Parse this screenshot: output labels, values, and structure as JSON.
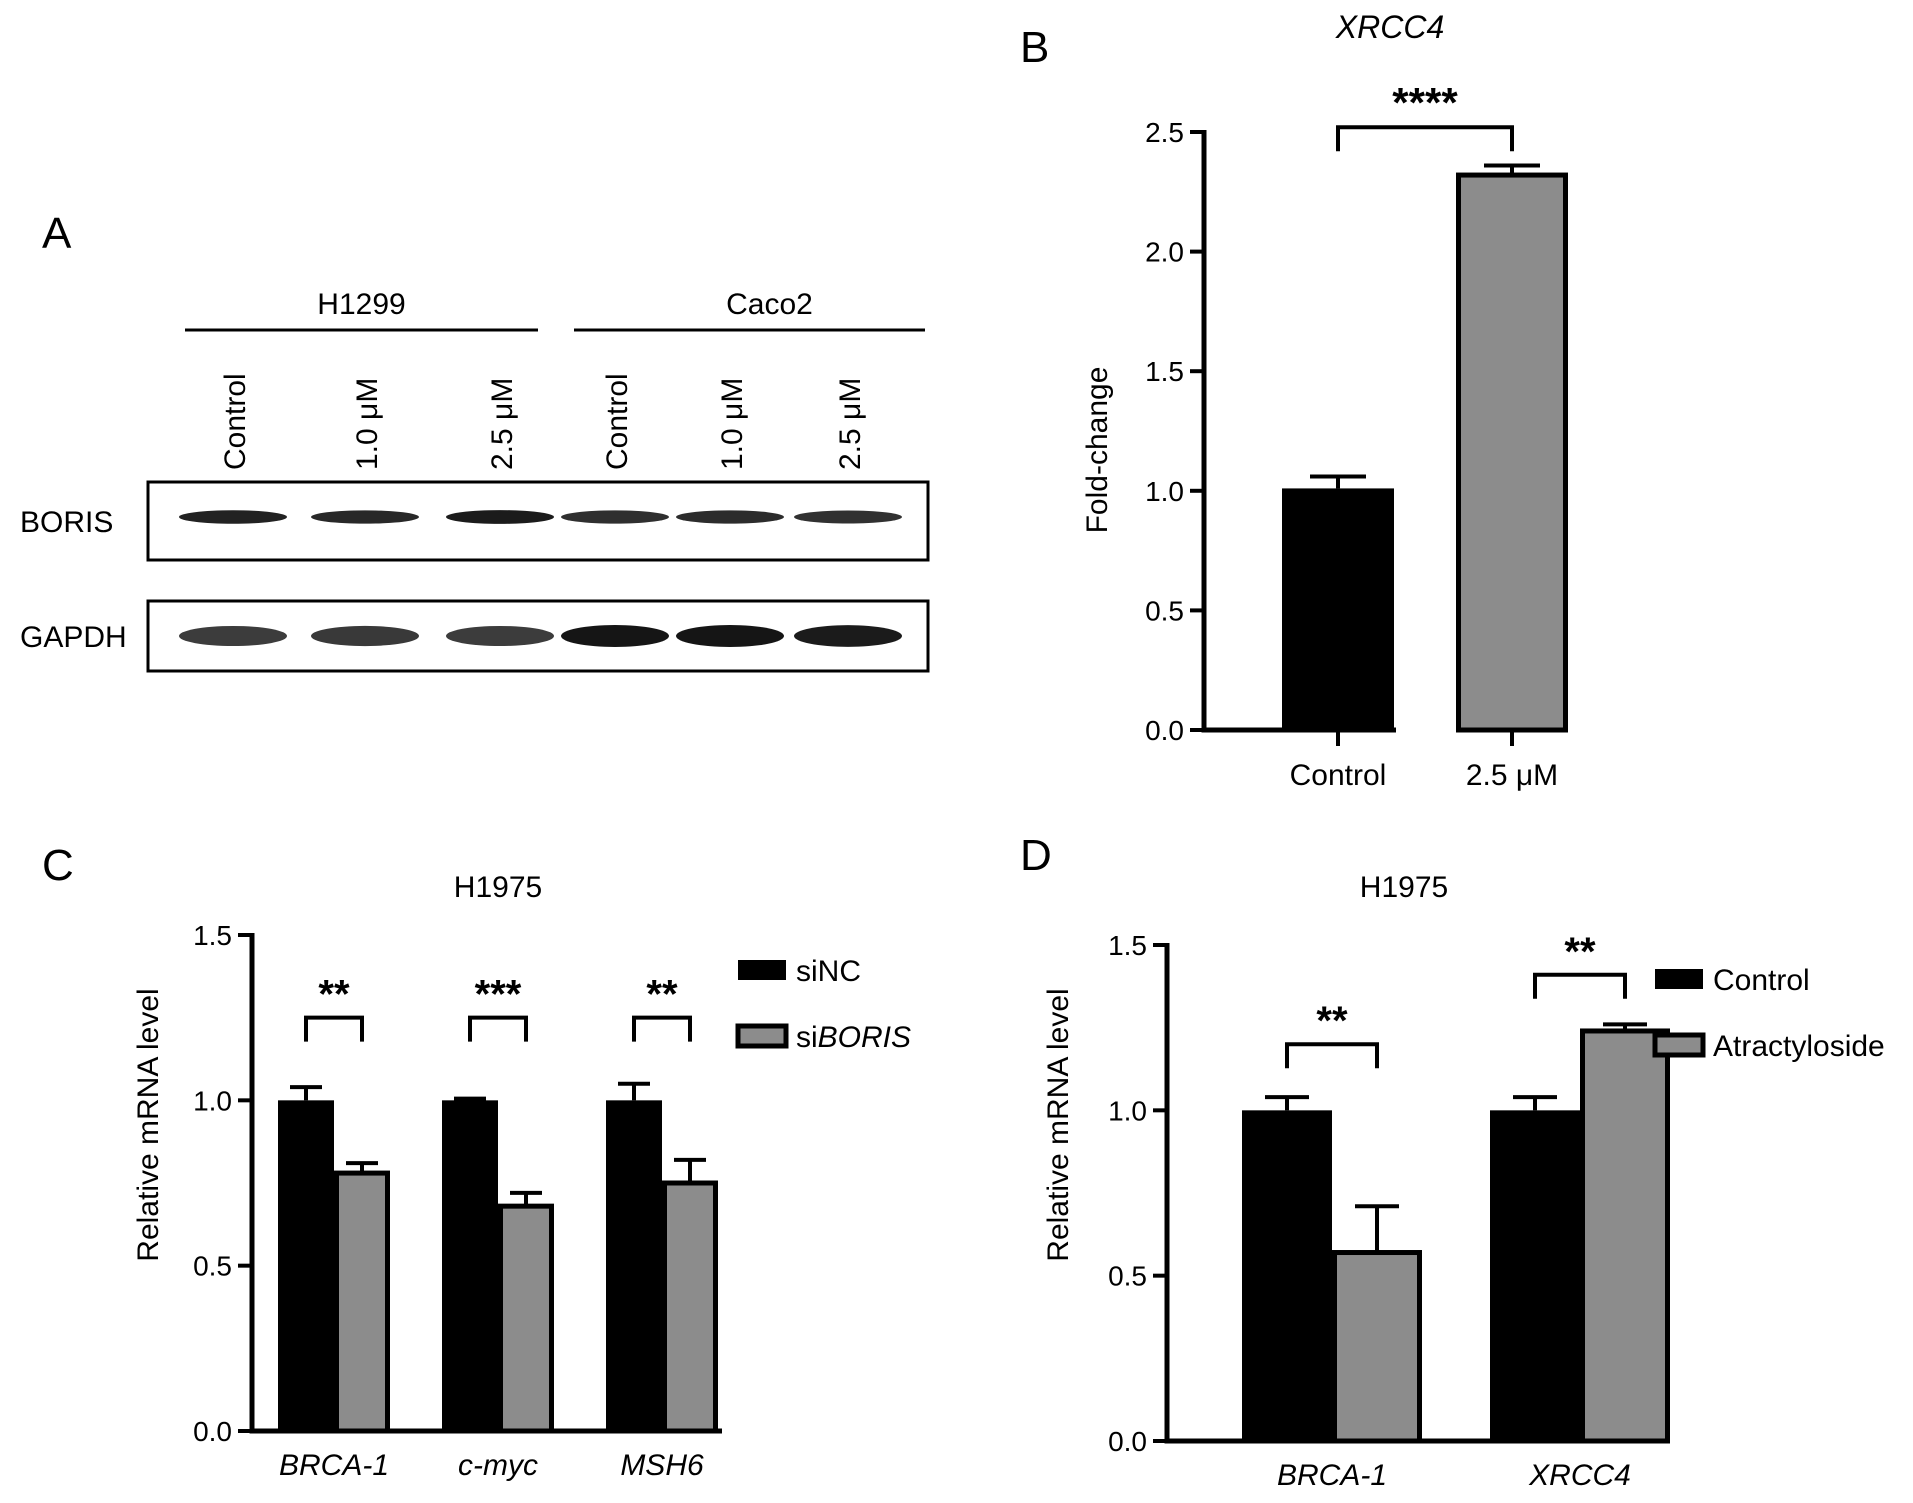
{
  "panels": {
    "A": {
      "letter": "A",
      "groups": [
        {
          "name": "H1299",
          "lanes": [
            "Control",
            "1.0 μM",
            "2.5 μM"
          ]
        },
        {
          "name": "Caco2",
          "lanes": [
            "Control",
            "1.0 μM",
            "2.5 μM"
          ]
        }
      ],
      "blots": [
        {
          "label": "BORIS",
          "band_intensity": [
            0.9,
            0.85,
            0.95,
            0.8,
            0.82,
            0.78
          ]
        },
        {
          "label": "GAPDH",
          "band_intensity": [
            0.7,
            0.72,
            0.7,
            1.0,
            1.0,
            0.95
          ]
        }
      ],
      "colors": {
        "band": "#151515",
        "frame": "#000000"
      }
    },
    "B": {
      "letter": "B"
    },
    "C": {
      "letter": "C"
    },
    "D": {
      "letter": "D"
    }
  },
  "chart_data": [
    {
      "panel": "B",
      "type": "bar",
      "title": "XRCC4",
      "ylabel": "Fold-change",
      "xlabel": "",
      "ylim": [
        0,
        2.5
      ],
      "yticks": [
        0.0,
        0.5,
        1.0,
        1.5,
        2.0,
        2.5
      ],
      "ytick_labels": [
        "0.0",
        "0.5",
        "1.0",
        "1.5",
        "2.0",
        "2.5"
      ],
      "categories": [
        "Control",
        "2.5 μM"
      ],
      "values": [
        1.01,
        2.32
      ],
      "errors": [
        0.05,
        0.04
      ],
      "colors": [
        "#000000",
        "#8c8c8c"
      ],
      "significance": [
        {
          "from": 0,
          "to": 1,
          "label": "****",
          "level": 2.52
        }
      ],
      "grid": false,
      "legend": "none"
    },
    {
      "panel": "C",
      "type": "bar",
      "title": "H1975",
      "ylabel": "Relative mRNA level",
      "xlabel": "",
      "ylim": [
        0,
        1.5
      ],
      "yticks": [
        0.0,
        0.5,
        1.0,
        1.5
      ],
      "ytick_labels": [
        "0.0",
        "0.5",
        "1.0",
        "1.5"
      ],
      "categories": [
        "BRCA-1",
        "c-myc",
        "MSH6"
      ],
      "series": [
        {
          "name": "siNC",
          "values": [
            1.0,
            1.0,
            1.0
          ],
          "errors": [
            0.04,
            0.005,
            0.05
          ],
          "color": "#000000"
        },
        {
          "name": "siBORIS",
          "values": [
            0.78,
            0.68,
            0.75
          ],
          "errors": [
            0.03,
            0.04,
            0.07
          ],
          "color": "#8c8c8c"
        }
      ],
      "significance": [
        {
          "category": 0,
          "label": "**",
          "level": 1.25
        },
        {
          "category": 1,
          "label": "***",
          "level": 1.25
        },
        {
          "category": 2,
          "label": "**",
          "level": 1.25
        }
      ],
      "legend_parts": [
        [
          {
            "t": "si",
            "i": false
          },
          {
            "t": "NC",
            "i": false
          }
        ],
        [
          {
            "t": "si",
            "i": false
          },
          {
            "t": "BORIS",
            "i": true
          }
        ]
      ],
      "grid": false,
      "legend": "top-right"
    },
    {
      "panel": "D",
      "type": "bar",
      "title": "H1975",
      "ylabel": "Relative mRNA level",
      "xlabel": "",
      "ylim": [
        0,
        1.5
      ],
      "yticks": [
        0.0,
        0.5,
        1.0,
        1.5
      ],
      "ytick_labels": [
        "0.0",
        "0.5",
        "1.0",
        "1.5"
      ],
      "categories": [
        "BRCA-1",
        "XRCC4"
      ],
      "series": [
        {
          "name": "Control",
          "values": [
            1.0,
            1.0
          ],
          "errors": [
            0.04,
            0.04
          ],
          "color": "#000000"
        },
        {
          "name": "Atractyloside",
          "values": [
            0.57,
            1.24
          ],
          "errors": [
            0.14,
            0.02
          ],
          "color": "#8c8c8c"
        }
      ],
      "significance": [
        {
          "category": 0,
          "label": "**",
          "level": 1.2
        },
        {
          "category": 1,
          "label": "**",
          "level": 1.41
        }
      ],
      "legend_parts": [
        [
          {
            "t": "Control",
            "i": false
          }
        ],
        [
          {
            "t": "Atractyloside",
            "i": false
          }
        ]
      ],
      "grid": false,
      "legend": "top-right"
    }
  ]
}
